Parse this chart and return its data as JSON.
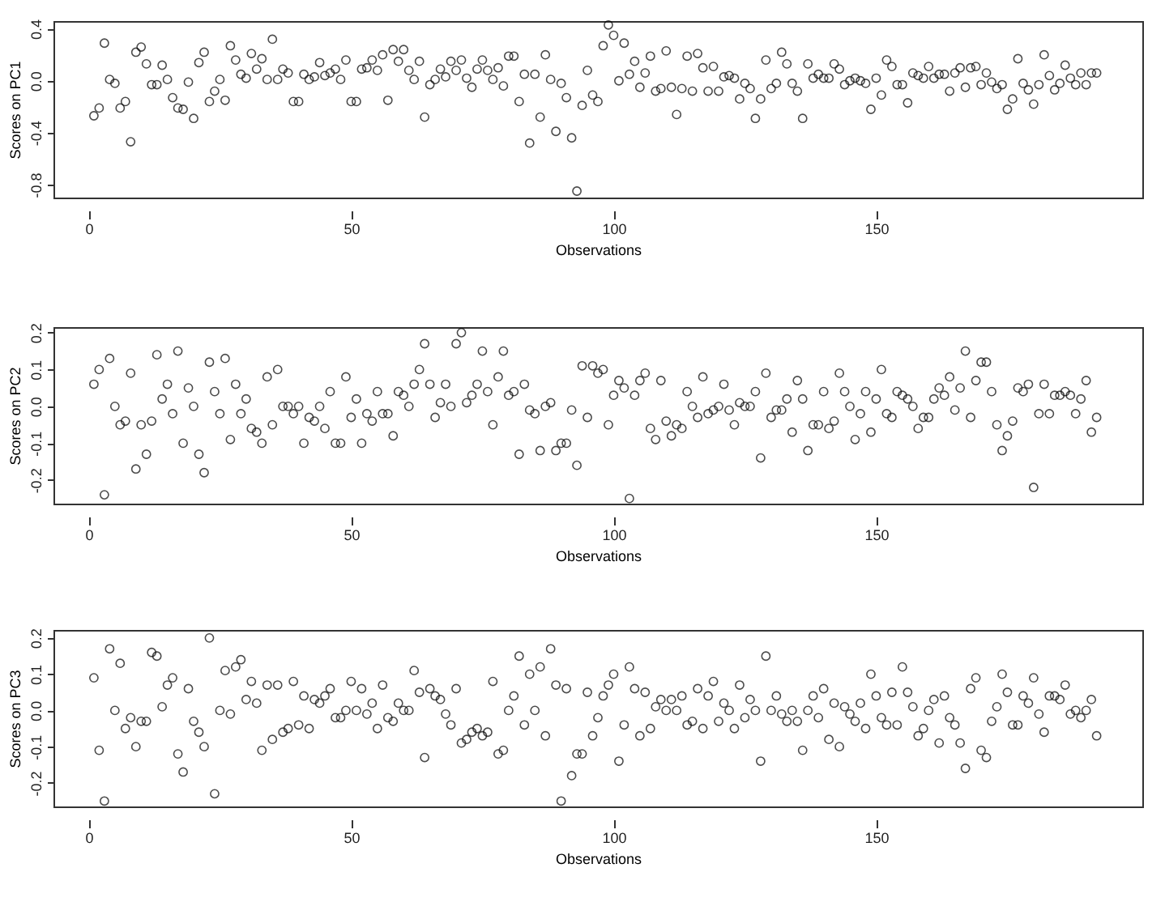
{
  "chart_data": [
    {
      "type": "scatter",
      "xlabel": "Observations",
      "ylabel": "Scores on PC1",
      "color": "#000000",
      "marker": "circle",
      "grid": false,
      "xlim": [
        -6.7,
        200.7
      ],
      "xticks": [
        0,
        50,
        100,
        150
      ],
      "ylim": [
        -0.9,
        0.46
      ],
      "yticks": [
        {
          "value": -0.8,
          "label": "-0.8"
        },
        {
          "value": -0.4,
          "label": "-0.4"
        },
        {
          "value": 0,
          "label": "0.0"
        },
        {
          "value": 0.4,
          "label": "0.4"
        }
      ],
      "x": [
        1,
        2,
        3,
        4,
        5,
        6,
        7,
        8,
        9,
        10,
        11,
        12,
        13,
        14,
        15,
        16,
        17,
        18,
        19,
        20,
        21,
        22,
        23,
        24,
        25,
        26,
        27,
        28,
        29,
        30,
        31,
        32,
        33,
        34,
        35,
        36,
        37,
        38,
        39,
        40,
        41,
        42,
        43,
        44,
        45,
        46,
        47,
        48,
        49,
        50,
        51,
        52,
        53,
        54,
        55,
        56,
        57,
        58,
        59,
        60,
        61,
        62,
        63,
        64,
        65,
        66,
        67,
        68,
        69,
        70,
        71,
        72,
        73,
        74,
        75,
        76,
        77,
        78,
        79,
        80,
        81,
        82,
        83,
        84,
        85,
        86,
        87,
        88,
        89,
        90,
        91,
        92,
        93,
        94,
        95,
        96,
        97,
        98,
        99,
        100,
        101,
        102,
        103,
        104,
        105,
        106,
        107,
        108,
        109,
        110,
        111,
        112,
        113,
        114,
        115,
        116,
        117,
        118,
        119,
        120,
        121,
        122,
        123,
        124,
        125,
        126,
        127,
        128,
        129,
        130,
        131,
        132,
        133,
        134,
        135,
        136,
        137,
        138,
        139,
        140,
        141,
        142,
        143,
        144,
        145,
        146,
        147,
        148,
        149,
        150,
        151,
        152,
        153,
        154,
        155,
        156,
        157,
        158,
        159,
        160,
        161,
        162,
        163,
        164,
        165,
        166,
        167,
        168,
        169,
        170,
        171,
        172,
        173,
        174,
        175,
        176,
        177,
        178,
        179,
        180,
        181,
        182,
        183,
        184,
        185,
        186,
        187,
        188,
        189,
        190,
        191,
        192
      ],
      "values": [
        -0.27,
        -0.21,
        0.29,
        0.01,
        -0.02,
        -0.21,
        -0.16,
        -0.47,
        0.22,
        0.26,
        0.13,
        -0.03,
        -0.03,
        0.12,
        0.01,
        -0.13,
        -0.21,
        -0.22,
        -0.01,
        -0.29,
        0.14,
        0.22,
        -0.16,
        -0.08,
        0.01,
        -0.15,
        0.27,
        0.16,
        0.05,
        0.02,
        0.21,
        0.09,
        0.17,
        0.01,
        0.32,
        0.01,
        0.09,
        0.06,
        -0.16,
        -0.16,
        0.05,
        0.01,
        0.03,
        0.14,
        0.04,
        0.06,
        0.09,
        0.01,
        0.16,
        -0.16,
        -0.16,
        0.09,
        0.1,
        0.16,
        0.08,
        0.2,
        -0.15,
        0.24,
        0.15,
        0.24,
        0.08,
        0.01,
        0.15,
        -0.28,
        -0.03,
        0.01,
        0.09,
        0.03,
        0.15,
        0.08,
        0.16,
        0.02,
        -0.05,
        0.09,
        0.16,
        0.08,
        0.01,
        0.1,
        -0.04,
        0.19,
        0.19,
        -0.16,
        0.05,
        -0.48,
        0.05,
        -0.28,
        0.2,
        0.01,
        -0.39,
        -0.02,
        -0.13,
        -0.44,
        -0.85,
        -0.19,
        0.08,
        -0.11,
        -0.16,
        0.27,
        0.43,
        0.35,
        0.0,
        0.29,
        0.05,
        0.15,
        -0.05,
        0.06,
        0.19,
        -0.08,
        -0.06,
        0.23,
        -0.05,
        -0.26,
        -0.06,
        0.19,
        -0.08,
        0.21,
        0.1,
        -0.08,
        0.11,
        -0.08,
        0.03,
        0.04,
        0.02,
        -0.14,
        -0.02,
        -0.06,
        -0.29,
        -0.14,
        0.16,
        -0.06,
        -0.02,
        0.22,
        0.13,
        -0.02,
        -0.08,
        -0.29,
        0.13,
        0.02,
        0.05,
        0.02,
        0.02,
        0.13,
        0.09,
        -0.03,
        0.0,
        0.02,
        0.0,
        -0.02,
        -0.22,
        0.02,
        -0.11,
        0.16,
        0.11,
        -0.03,
        -0.03,
        -0.17,
        0.06,
        0.04,
        0.02,
        0.11,
        0.02,
        0.05,
        0.05,
        -0.08,
        0.06,
        0.1,
        -0.05,
        0.1,
        0.11,
        -0.03,
        0.06,
        -0.01,
        -0.06,
        -0.03,
        -0.22,
        -0.14,
        0.17,
        -0.02,
        -0.07,
        -0.18,
        -0.03,
        0.2,
        0.04,
        -0.07,
        -0.02,
        0.12,
        0.02,
        -0.03,
        0.06,
        -0.03,
        0.06,
        0.06
      ]
    },
    {
      "type": "scatter",
      "xlabel": "Observations",
      "ylabel": "Scores on PC2",
      "color": "#000000",
      "marker": "circle",
      "grid": false,
      "xlim": [
        -6.7,
        200.7
      ],
      "xticks": [
        0,
        50,
        100,
        150
      ],
      "ylim": [
        -0.264,
        0.215
      ],
      "yticks": [
        {
          "value": -0.2,
          "label": "-0.2"
        },
        {
          "value": -0.1,
          "label": "-0.1"
        },
        {
          "value": 0,
          "label": "0.0"
        },
        {
          "value": 0.1,
          "label": "0.1"
        },
        {
          "value": 0.2,
          "label": "0.2"
        }
      ],
      "x": [
        1,
        2,
        3,
        4,
        5,
        6,
        7,
        8,
        9,
        10,
        11,
        12,
        13,
        14,
        15,
        16,
        17,
        18,
        19,
        20,
        21,
        22,
        23,
        24,
        25,
        26,
        27,
        28,
        29,
        30,
        31,
        32,
        33,
        34,
        35,
        36,
        37,
        38,
        39,
        40,
        41,
        42,
        43,
        44,
        45,
        46,
        47,
        48,
        49,
        50,
        51,
        52,
        53,
        54,
        55,
        56,
        57,
        58,
        59,
        60,
        61,
        62,
        63,
        64,
        65,
        66,
        67,
        68,
        69,
        70,
        71,
        72,
        73,
        74,
        75,
        76,
        77,
        78,
        79,
        80,
        81,
        82,
        83,
        84,
        85,
        86,
        87,
        88,
        89,
        90,
        91,
        92,
        93,
        94,
        95,
        96,
        97,
        98,
        99,
        100,
        101,
        102,
        103,
        104,
        105,
        106,
        107,
        108,
        109,
        110,
        111,
        112,
        113,
        114,
        115,
        116,
        117,
        118,
        119,
        120,
        121,
        122,
        123,
        124,
        125,
        126,
        127,
        128,
        129,
        130,
        131,
        132,
        133,
        134,
        135,
        136,
        137,
        138,
        139,
        140,
        141,
        142,
        143,
        144,
        145,
        146,
        147,
        148,
        149,
        150,
        151,
        152,
        153,
        154,
        155,
        156,
        157,
        158,
        159,
        160,
        161,
        162,
        163,
        164,
        165,
        166,
        167,
        168,
        169,
        170,
        171,
        172,
        173,
        174,
        175,
        176,
        177,
        178,
        179,
        180,
        181,
        182,
        183,
        184,
        185,
        186,
        187,
        188,
        189,
        190,
        191,
        192
      ],
      "values": [
        0.06,
        0.1,
        -0.24,
        0.13,
        0.0,
        -0.05,
        -0.04,
        0.09,
        -0.17,
        -0.05,
        -0.13,
        -0.04,
        0.14,
        0.02,
        0.06,
        -0.02,
        0.15,
        -0.1,
        0.05,
        0.0,
        -0.13,
        -0.18,
        0.12,
        0.04,
        -0.02,
        0.13,
        -0.09,
        0.06,
        -0.02,
        0.02,
        -0.06,
        -0.07,
        -0.1,
        0.08,
        -0.05,
        0.1,
        0.0,
        0.0,
        -0.02,
        0.0,
        -0.1,
        -0.03,
        -0.04,
        0.0,
        -0.06,
        0.04,
        -0.1,
        -0.1,
        0.08,
        -0.03,
        0.02,
        -0.1,
        -0.02,
        -0.04,
        0.04,
        -0.02,
        -0.02,
        -0.08,
        0.04,
        0.03,
        0.0,
        0.06,
        0.1,
        0.17,
        0.06,
        -0.03,
        0.01,
        0.06,
        0.0,
        0.17,
        0.2,
        0.01,
        0.03,
        0.06,
        0.15,
        0.04,
        -0.05,
        0.08,
        0.15,
        0.03,
        0.04,
        -0.13,
        0.06,
        -0.01,
        -0.02,
        -0.12,
        0.0,
        0.01,
        -0.12,
        -0.1,
        -0.1,
        -0.01,
        -0.16,
        0.11,
        -0.03,
        0.11,
        0.09,
        0.1,
        -0.05,
        0.03,
        0.07,
        0.05,
        -0.25,
        0.03,
        0.07,
        0.09,
        -0.06,
        -0.09,
        0.07,
        -0.04,
        -0.08,
        -0.05,
        -0.06,
        0.04,
        0.0,
        -0.03,
        0.08,
        -0.02,
        -0.01,
        0.0,
        0.06,
        -0.01,
        -0.05,
        0.01,
        0.0,
        0.0,
        0.04,
        -0.14,
        0.09,
        -0.03,
        -0.01,
        -0.01,
        0.02,
        -0.07,
        0.07,
        0.02,
        -0.12,
        -0.05,
        -0.05,
        0.04,
        -0.06,
        -0.04,
        0.09,
        0.04,
        0.0,
        -0.09,
        -0.02,
        0.04,
        -0.07,
        0.02,
        0.1,
        -0.02,
        -0.03,
        0.04,
        0.03,
        0.02,
        0.0,
        -0.06,
        -0.03,
        -0.03,
        0.02,
        0.05,
        0.03,
        0.08,
        -0.01,
        0.05,
        0.15,
        -0.03,
        0.07,
        0.12,
        0.12,
        0.04,
        -0.05,
        -0.12,
        -0.08,
        -0.04,
        0.05,
        0.04,
        0.06,
        -0.22,
        -0.02,
        0.06,
        -0.02,
        0.03,
        0.03,
        0.04,
        0.03,
        -0.02,
        0.02,
        0.07,
        -0.07,
        -0.03
      ]
    },
    {
      "type": "scatter",
      "xlabel": "Observations",
      "ylabel": "Scores on PC3",
      "color": "#000000",
      "marker": "circle",
      "grid": false,
      "xlim": [
        -6.7,
        200.7
      ],
      "xticks": [
        0,
        50,
        100,
        150
      ],
      "ylim": [
        -0.265,
        0.222
      ],
      "yticks": [
        {
          "value": -0.2,
          "label": "-0.2"
        },
        {
          "value": -0.1,
          "label": "-0.1"
        },
        {
          "value": 0,
          "label": "0.0"
        },
        {
          "value": 0.1,
          "label": "0.1"
        },
        {
          "value": 0.2,
          "label": "0.2"
        }
      ],
      "x": [
        1,
        2,
        3,
        4,
        5,
        6,
        7,
        8,
        9,
        10,
        11,
        12,
        13,
        14,
        15,
        16,
        17,
        18,
        19,
        20,
        21,
        22,
        23,
        24,
        25,
        26,
        27,
        28,
        29,
        30,
        31,
        32,
        33,
        34,
        35,
        36,
        37,
        38,
        39,
        40,
        41,
        42,
        43,
        44,
        45,
        46,
        47,
        48,
        49,
        50,
        51,
        52,
        53,
        54,
        55,
        56,
        57,
        58,
        59,
        60,
        61,
        62,
        63,
        64,
        65,
        66,
        67,
        68,
        69,
        70,
        71,
        72,
        73,
        74,
        75,
        76,
        77,
        78,
        79,
        80,
        81,
        82,
        83,
        84,
        85,
        86,
        87,
        88,
        89,
        90,
        91,
        92,
        93,
        94,
        95,
        96,
        97,
        98,
        99,
        100,
        101,
        102,
        103,
        104,
        105,
        106,
        107,
        108,
        109,
        110,
        111,
        112,
        113,
        114,
        115,
        116,
        117,
        118,
        119,
        120,
        121,
        122,
        123,
        124,
        125,
        126,
        127,
        128,
        129,
        130,
        131,
        132,
        133,
        134,
        135,
        136,
        137,
        138,
        139,
        140,
        141,
        142,
        143,
        144,
        145,
        146,
        147,
        148,
        149,
        150,
        151,
        152,
        153,
        154,
        155,
        156,
        157,
        158,
        159,
        160,
        161,
        162,
        163,
        164,
        165,
        166,
        167,
        168,
        169,
        170,
        171,
        172,
        173,
        174,
        175,
        176,
        177,
        178,
        179,
        180,
        181,
        182,
        183,
        184,
        185,
        186,
        187,
        188,
        189,
        190,
        191,
        192
      ],
      "values": [
        0.09,
        -0.11,
        -0.25,
        0.17,
        0.0,
        0.13,
        -0.05,
        -0.02,
        -0.1,
        -0.03,
        -0.03,
        0.16,
        0.15,
        0.01,
        0.07,
        0.09,
        -0.12,
        -0.17,
        0.06,
        -0.03,
        -0.06,
        -0.1,
        0.2,
        -0.23,
        0.0,
        0.11,
        -0.01,
        0.12,
        0.14,
        0.03,
        0.08,
        0.02,
        -0.11,
        0.07,
        -0.08,
        0.07,
        -0.06,
        -0.05,
        0.08,
        -0.04,
        0.04,
        -0.05,
        0.03,
        0.02,
        0.04,
        0.06,
        -0.02,
        -0.02,
        0.0,
        0.08,
        0.0,
        0.06,
        -0.01,
        0.02,
        -0.05,
        0.07,
        -0.02,
        -0.03,
        0.02,
        0.0,
        0.0,
        0.11,
        0.05,
        -0.13,
        0.06,
        0.04,
        0.03,
        -0.01,
        -0.04,
        0.06,
        -0.09,
        -0.08,
        -0.06,
        -0.05,
        -0.07,
        -0.06,
        0.08,
        -0.12,
        -0.11,
        0.0,
        0.04,
        0.15,
        -0.04,
        0.1,
        0.0,
        0.12,
        -0.07,
        0.17,
        0.07,
        -0.25,
        0.06,
        -0.18,
        -0.12,
        -0.12,
        0.05,
        -0.07,
        -0.02,
        0.04,
        0.07,
        0.1,
        -0.14,
        -0.04,
        0.12,
        0.06,
        -0.07,
        0.05,
        -0.05,
        0.01,
        0.03,
        0.0,
        0.03,
        0.0,
        0.04,
        -0.04,
        -0.03,
        0.06,
        -0.05,
        0.04,
        0.08,
        -0.03,
        0.02,
        0.0,
        -0.05,
        0.07,
        -0.02,
        0.03,
        0.0,
        -0.14,
        0.15,
        0.0,
        0.04,
        -0.01,
        -0.03,
        0.0,
        -0.03,
        -0.11,
        0.0,
        0.04,
        -0.02,
        0.06,
        -0.08,
        0.02,
        -0.1,
        0.01,
        -0.01,
        -0.03,
        0.02,
        -0.05,
        0.1,
        0.04,
        -0.02,
        -0.04,
        0.05,
        -0.04,
        0.12,
        0.05,
        0.01,
        -0.07,
        -0.05,
        0.0,
        0.03,
        -0.09,
        0.04,
        -0.02,
        -0.04,
        -0.09,
        -0.16,
        0.06,
        0.09,
        -0.11,
        -0.13,
        -0.03,
        0.01,
        0.1,
        0.05,
        -0.04,
        -0.04,
        0.04,
        0.02,
        0.09,
        -0.01,
        -0.06,
        0.04,
        0.04,
        0.03,
        0.07,
        -0.01,
        0.0,
        -0.02,
        0.0,
        0.03,
        -0.07
      ]
    }
  ]
}
